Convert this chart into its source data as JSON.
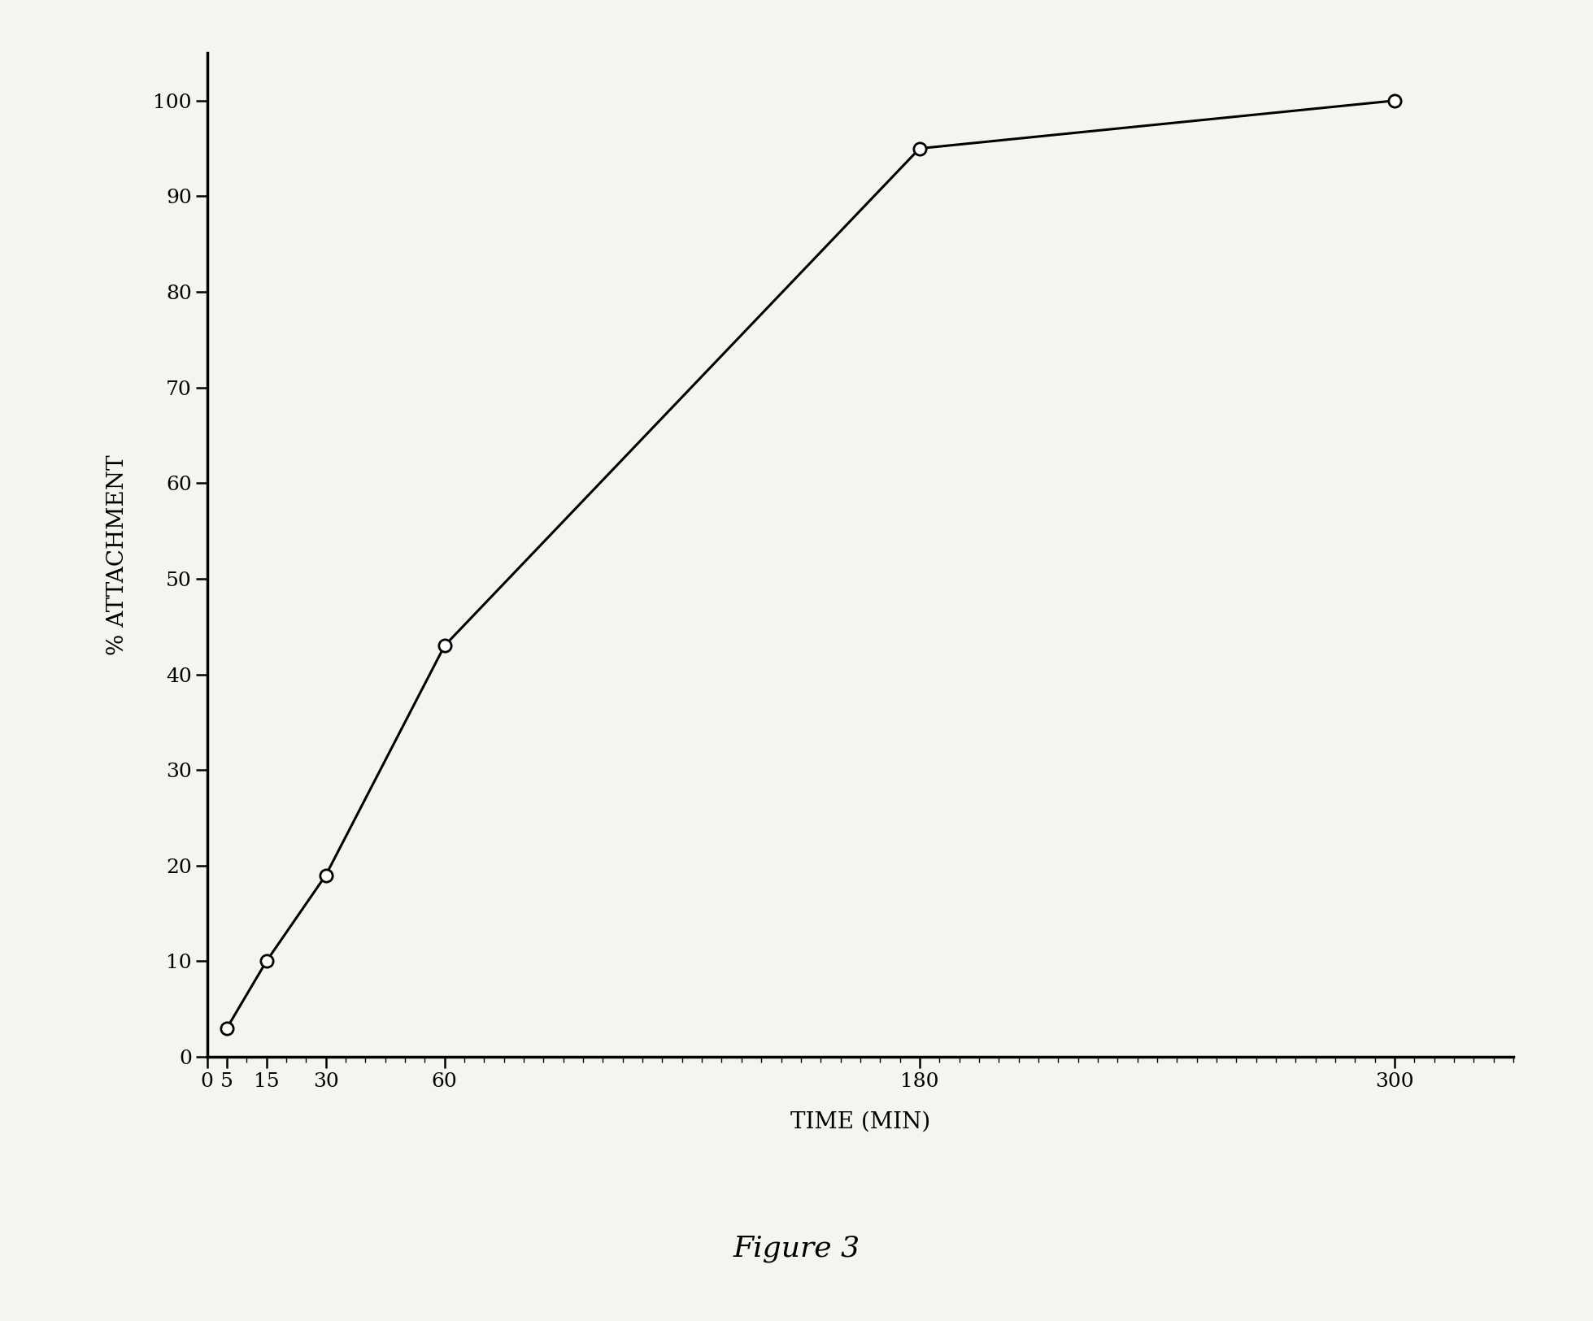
{
  "x": [
    5,
    15,
    30,
    60,
    180,
    300
  ],
  "y": [
    3,
    10,
    19,
    43,
    95,
    100
  ],
  "xlabel": "TIME (MIN)",
  "ylabel": "% ATTACHMENT",
  "xlim": [
    0,
    330
  ],
  "ylim": [
    0,
    105
  ],
  "xticks_major": [
    0,
    5,
    15,
    30,
    60,
    180,
    300
  ],
  "xticks_minor_step": 5,
  "yticks": [
    0,
    10,
    20,
    30,
    40,
    50,
    60,
    70,
    80,
    90,
    100
  ],
  "figure_caption": "Figure 3",
  "line_color": "#000000",
  "marker_color": "#ffffff",
  "marker_edge_color": "#000000",
  "background_color": "#f5f5f0",
  "label_fontsize": 20,
  "tick_fontsize": 18,
  "caption_fontsize": 26
}
